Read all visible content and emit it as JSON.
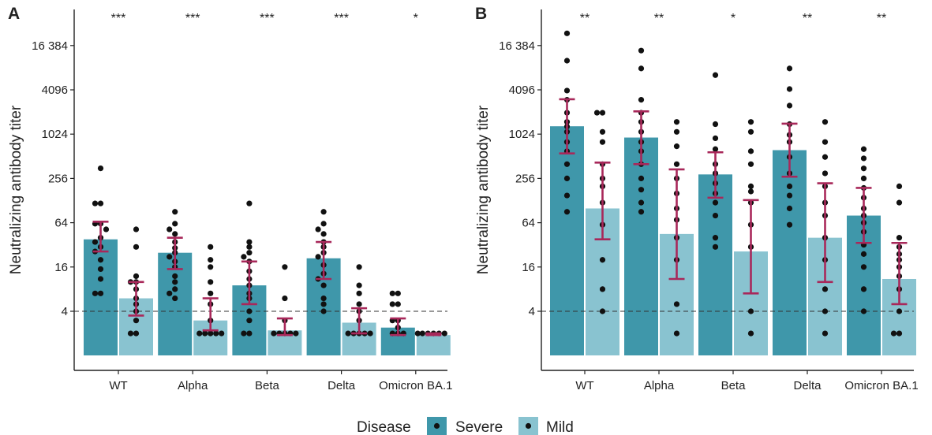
{
  "panels": [
    {
      "letter": "A"
    },
    {
      "letter": "B"
    }
  ],
  "legend": {
    "title": "Disease",
    "items": [
      {
        "label": "Severe",
        "color": "#3f97aa"
      },
      {
        "label": "Mild",
        "color": "#89c3d0"
      }
    ]
  },
  "colors": {
    "severe": "#3f97aa",
    "mild": "#89c3d0",
    "error_bar": "#a8285a",
    "point": "#111111"
  },
  "chart_data": [
    {
      "type": "bar",
      "panel": "A",
      "ylabel": "Neutralizing antibody titer",
      "xlabel": "",
      "y_scale": "log2",
      "ylim": [
        1,
        45000
      ],
      "y_ticks": [
        4,
        16,
        64,
        256,
        1024,
        4096,
        16384
      ],
      "y_tick_labels": [
        "4",
        "16",
        "64",
        "256",
        "1024",
        "4096",
        "16 384"
      ],
      "reference_line": 4,
      "categories": [
        "WT",
        "Alpha",
        "Beta",
        "Delta",
        "Omicron BA.1"
      ],
      "significance": [
        "***",
        "***",
        "***",
        "***",
        "*"
      ],
      "series": [
        {
          "name": "Severe",
          "values": [
            38,
            25,
            9,
            21,
            2.4
          ],
          "error_low": [
            26,
            15,
            5,
            11,
            1.9
          ],
          "error_high": [
            66,
            40,
            19,
            35,
            3.2
          ],
          "points": [
            [
              351,
              117,
              117,
              62,
              62,
              52,
              40,
              35,
              30,
              26,
              20,
              15,
              11,
              7,
              7
            ],
            [
              90,
              62,
              52,
              45,
              35,
              29,
              25,
              22,
              19,
              16,
              12,
              10,
              8,
              7,
              6
            ],
            [
              117,
              35,
              30,
              25,
              22,
              19,
              14,
              11,
              9,
              7,
              6,
              4,
              3,
              2,
              2
            ],
            [
              90,
              62,
              52,
              45,
              35,
              30,
              25,
              22,
              17,
              13,
              11,
              9,
              6,
              5,
              4
            ],
            [
              7,
              7,
              5,
              5,
              3,
              3,
              2.4,
              2,
              2,
              2
            ]
          ]
        },
        {
          "name": "Mild",
          "values": [
            6,
            3,
            2.2,
            2.8,
            1.9
          ],
          "error_low": [
            3.5,
            2.2,
            1.9,
            2.0,
            1.9
          ],
          "error_high": [
            10,
            6,
            3.2,
            4.4,
            2.0
          ],
          "points": [
            [
              52,
              30,
              12,
              10,
              10,
              8,
              6,
              5,
              4,
              3,
              2,
              2
            ],
            [
              30,
              20,
              16,
              10,
              7,
              5,
              3,
              2,
              2,
              2,
              2,
              2
            ],
            [
              16,
              6,
              3,
              2,
              2,
              2,
              2,
              2
            ],
            [
              16,
              9,
              7,
              5,
              4,
              3,
              2,
              2,
              2,
              2,
              2
            ],
            [
              2,
              2,
              2,
              2,
              2,
              2
            ]
          ]
        }
      ]
    },
    {
      "type": "bar",
      "panel": "B",
      "ylabel": "Neutralizing antibody titer",
      "xlabel": "",
      "y_scale": "log2",
      "ylim": [
        1,
        45000
      ],
      "y_ticks": [
        4,
        16,
        64,
        256,
        1024,
        4096,
        16384
      ],
      "y_tick_labels": [
        "4",
        "16",
        "64",
        "256",
        "1024",
        "4096",
        "16 384"
      ],
      "reference_line": 4,
      "categories": [
        "WT",
        "Alpha",
        "Beta",
        "Delta",
        "Omicron BA.1"
      ],
      "significance": [
        "**",
        "**",
        "*",
        "**",
        "**"
      ],
      "series": [
        {
          "name": "Severe",
          "values": [
            1310,
            920,
            290,
            620,
            80
          ],
          "error_low": [
            560,
            400,
            140,
            270,
            34
          ],
          "error_high": [
            3050,
            2090,
            580,
            1420,
            190
          ],
          "points": [
            [
              24000,
              10200,
              4000,
              3000,
              2000,
              1500,
              1300,
              1100,
              800,
              600,
              400,
              256,
              150,
              90
            ],
            [
              14000,
              8000,
              3000,
              2000,
              1500,
              1100,
              800,
              600,
              400,
              256,
              180,
              120,
              90
            ],
            [
              6500,
              1400,
              900,
              640,
              400,
              300,
              220,
              160,
              120,
              80,
              40,
              30
            ],
            [
              8000,
              4200,
              2500,
              1400,
              1000,
              800,
              500,
              300,
              200,
              150,
              100,
              60
            ],
            [
              640,
              480,
              350,
              256,
              190,
              140,
              100,
              80,
              64,
              48,
              32,
              24,
              16,
              8,
              4
            ]
          ]
        },
        {
          "name": "Mild",
          "values": [
            100,
            45,
            26,
            40,
            11
          ],
          "error_low": [
            38,
            11,
            7,
            10,
            5
          ],
          "error_high": [
            420,
            340,
            130,
            220,
            34
          ],
          "points": [
            [
              2000,
              2000,
              1100,
              800,
              400,
              256,
              200,
              120,
              60,
              20,
              8,
              4
            ],
            [
              1500,
              1100,
              700,
              400,
              256,
              160,
              100,
              70,
              40,
              20,
              5,
              2
            ],
            [
              1500,
              1100,
              600,
              400,
              200,
              170,
              120,
              60,
              30,
              4,
              2
            ],
            [
              1500,
              800,
              500,
              300,
              200,
              120,
              80,
              40,
              20,
              8,
              4,
              2
            ],
            [
              200,
              120,
              40,
              30,
              24,
              20,
              16,
              12,
              8,
              4,
              2,
              2
            ]
          ]
        }
      ]
    }
  ]
}
